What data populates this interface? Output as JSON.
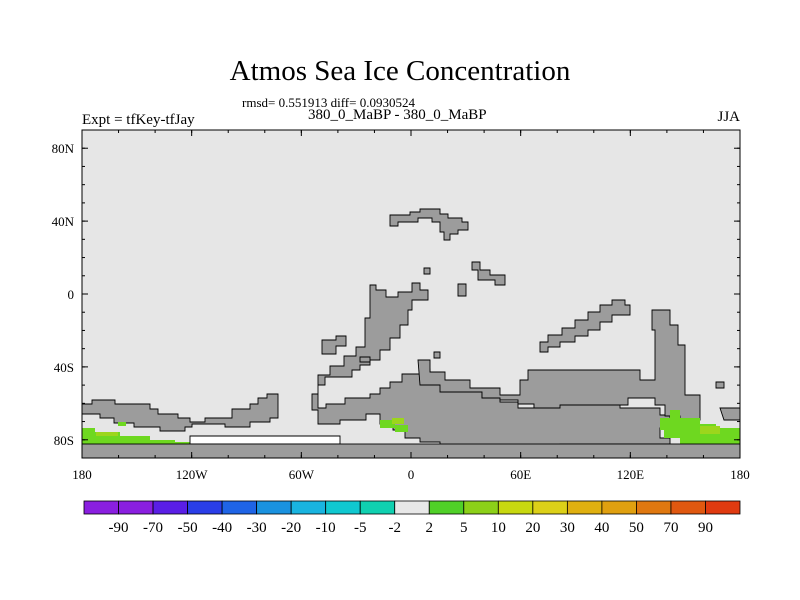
{
  "header": {
    "title": "Atmos Sea Ice Concentration",
    "stats": "rmsd= 0.551913 diff= 0.0930524",
    "case_label": "380_0_MaBP - 380_0_MaBP",
    "expt_label": "Expt = tfKey-tfJay",
    "season": "JJA"
  },
  "chart_data": {
    "type": "heatmap",
    "title": "Atmos Sea Ice Concentration",
    "xlabel": "",
    "ylabel": "",
    "xlim": [
      -180,
      180
    ],
    "ylim": [
      -90,
      90
    ],
    "x_ticks": [
      {
        "value": -180,
        "label": "180"
      },
      {
        "value": -120,
        "label": "120W"
      },
      {
        "value": -60,
        "label": "60W"
      },
      {
        "value": 0,
        "label": "0"
      },
      {
        "value": 60,
        "label": "60E"
      },
      {
        "value": 120,
        "label": "120E"
      },
      {
        "value": 180,
        "label": "180"
      }
    ],
    "y_ticks": [
      {
        "value": 80,
        "label": "80N"
      },
      {
        "value": 40,
        "label": "40N"
      },
      {
        "value": 0,
        "label": "0"
      },
      {
        "value": -40,
        "label": "40S"
      },
      {
        "value": -80,
        "label": "80S"
      }
    ],
    "colorbar": {
      "labels": [
        "-90",
        "-70",
        "-50",
        "-40",
        "-30",
        "-20",
        "-10",
        "-5",
        "-2",
        "2",
        "5",
        "10",
        "20",
        "30",
        "40",
        "50",
        "70",
        "90"
      ],
      "colors": [
        "#8a1fe0",
        "#5a1ee6",
        "#2a3ee8",
        "#1f64e6",
        "#1a92e0",
        "#19b4e0",
        "#10c8d0",
        "#10d0b0",
        "#e8e8e8",
        "#50d028",
        "#8cd018",
        "#c8d810",
        "#dcd018",
        "#e0b010",
        "#e0a010",
        "#e07810",
        "#e05810",
        "#e03a10"
      ]
    },
    "colors": {
      "background_field": "#e6e6e6",
      "land_mask": "#9c9c9c",
      "diff_low": "#6ed820",
      "diff_high": "#9cd61c"
    }
  }
}
